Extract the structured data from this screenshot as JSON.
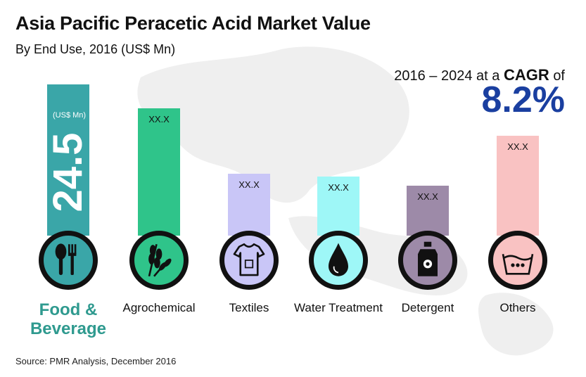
{
  "title": "Asia Pacific Peracetic Acid Market Value",
  "subtitle": "By End Use, 2016 (US$ Mn)",
  "cagr": {
    "prefix": "2016 – 2024",
    "at_a": "at a",
    "word": "CAGR",
    "of": "of",
    "value": "8.2%"
  },
  "source": "Source: PMR Analysis, December 2016",
  "colors": {
    "food": "#3aa6a8",
    "agro": "#2fc48a",
    "textiles": "#c9c6f7",
    "water": "#9ef7f7",
    "detergent": "#9d8aa8",
    "others": "#f9c2c2",
    "cagr": "#1a3fa0",
    "highlight_label": "#2f9a8f"
  },
  "chart_data": {
    "type": "bar",
    "categories": [
      "Food & Beverage",
      "Agrochemical",
      "Textiles",
      "Water Treatment",
      "Detergent",
      "Others"
    ],
    "value_labels": [
      "24.5",
      "XX.X",
      "XX.X",
      "XX.X",
      "XX.X",
      "XX.X"
    ],
    "unit_label": "(US$ Mn)",
    "values": [
      24.5,
      null,
      null,
      null,
      null,
      null
    ],
    "icons": [
      "fork-spoon-icon",
      "wheat-icon",
      "tshirt-icon",
      "water-drop-icon",
      "detergent-bottle-icon",
      "wash-tub-icon"
    ],
    "bar_fill_levels": [
      1.0,
      0.84,
      0.41,
      0.39,
      0.33,
      0.66
    ],
    "title": "Asia Pacific Peracetic Acid Market Value",
    "subtitle": "By End Use, 2016 (US$ Mn)",
    "grid": false,
    "legend": "none"
  }
}
